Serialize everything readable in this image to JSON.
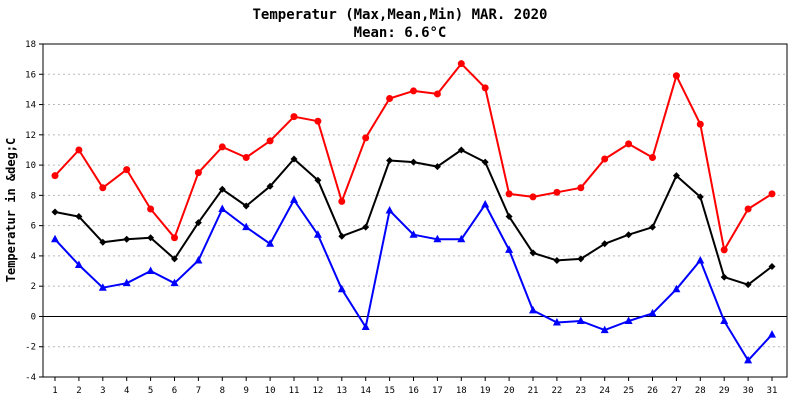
{
  "chart_data": {
    "type": "line",
    "title": "Temperatur (Max,Mean,Min) MAR. 2020",
    "subtitle": "Mean: 6.6°C",
    "ylabel": "Temperatur in &deg;C",
    "xlabel": "",
    "ylim": [
      -4,
      18
    ],
    "yticks": [
      -4,
      -2,
      0,
      2,
      4,
      6,
      8,
      10,
      12,
      14,
      16,
      18
    ],
    "x": [
      1,
      2,
      3,
      4,
      5,
      6,
      7,
      8,
      9,
      10,
      11,
      12,
      13,
      14,
      15,
      16,
      17,
      18,
      19,
      20,
      21,
      22,
      23,
      24,
      25,
      26,
      27,
      28,
      29,
      30,
      31
    ],
    "grid": true,
    "series": [
      {
        "color": "#ff0000",
        "marker": "circle",
        "values": [
          9.3,
          11.0,
          8.5,
          9.7,
          7.1,
          5.2,
          9.5,
          11.2,
          10.5,
          11.6,
          13.2,
          12.9,
          7.6,
          11.8,
          14.4,
          14.9,
          14.7,
          16.7,
          15.1,
          8.1,
          7.9,
          8.2,
          8.5,
          10.4,
          11.4,
          10.5,
          15.9,
          12.7,
          4.4,
          7.1,
          8.1
        ]
      },
      {
        "color": "#000000",
        "marker": "diamond",
        "values": [
          6.9,
          6.6,
          4.9,
          5.1,
          5.2,
          3.8,
          6.2,
          8.4,
          7.3,
          8.6,
          10.4,
          9.0,
          5.3,
          5.9,
          10.3,
          10.2,
          9.9,
          11.0,
          10.2,
          6.6,
          4.2,
          3.7,
          3.8,
          4.8,
          5.4,
          5.9,
          9.3,
          7.9,
          2.6,
          2.1,
          3.3
        ]
      },
      {
        "color": "#0000ff",
        "marker": "triangle",
        "values": [
          5.1,
          3.4,
          1.9,
          2.2,
          3.0,
          2.2,
          3.7,
          7.1,
          5.9,
          4.8,
          7.7,
          5.4,
          1.8,
          -0.7,
          7.0,
          5.4,
          5.1,
          5.1,
          7.4,
          4.4,
          0.4,
          -0.4,
          -0.3,
          -0.9,
          -0.3,
          0.2,
          1.8,
          3.7,
          -0.3,
          -2.9,
          -1.2
        ]
      }
    ]
  }
}
